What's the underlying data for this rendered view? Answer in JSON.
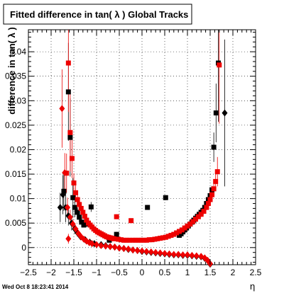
{
  "timestamp": "Wed Oct  8 18:23:41 2014",
  "chart_data": {
    "type": "scatter",
    "title": "Fitted difference in tan( λ )  Global Tracks",
    "xlabel": "η",
    "ylabel": "difference in tan( λ )",
    "xlim": [
      -2.5,
      2.5
    ],
    "ylim": [
      -0.0035,
      0.0445
    ],
    "x_ticks": [
      -2.5,
      -2,
      -1.5,
      -1,
      -0.5,
      0,
      0.5,
      1,
      1.5,
      2,
      2.5
    ],
    "x_tick_labels": [
      "−2.5",
      "−2",
      "−1.5",
      "−1",
      "−0.5",
      "0",
      "0.5",
      "1",
      "1.5",
      "2",
      "2.5"
    ],
    "y_ticks": [
      0,
      0.005,
      0.01,
      0.015,
      0.02,
      0.025,
      0.03,
      0.035,
      0.04
    ],
    "y_tick_labels": [
      "0",
      "0.005",
      "0.01",
      "0.015",
      "0.02",
      "0.025",
      "0.03",
      "0.035",
      "0.04"
    ],
    "grid": true,
    "series": [
      {
        "marker": "square",
        "color": "#000000",
        "points": [
          [
            -1.72,
            0.0115,
            0.004
          ],
          [
            -1.62,
            0.0318,
            0.01
          ],
          [
            -1.58,
            0.0225,
            0.008
          ],
          [
            -1.52,
            0.0102,
            0.004
          ],
          [
            -1.48,
            0.0082,
            0.002
          ],
          [
            -1.42,
            0.0072,
            0.001
          ],
          [
            -1.38,
            0.0062,
            0.001
          ],
          [
            -1.33,
            0.0052,
            0.001
          ],
          [
            -1.28,
            0.0046,
            0.0005
          ],
          [
            -1.2,
            0.0048,
            0.0005
          ],
          [
            -1.12,
            0.0083,
            0.001
          ],
          [
            -0.72,
            0.0015,
            0.0005
          ],
          [
            -0.56,
            0.0027,
            0.0005
          ],
          [
            0.12,
            0.0082,
            0.0005
          ],
          [
            0.52,
            0.0102,
            0.0005
          ],
          [
            0.82,
            0.0025,
            0.0003
          ],
          [
            0.86,
            0.0028,
            0.0003
          ],
          [
            0.9,
            0.0032,
            0.0003
          ],
          [
            0.94,
            0.0036,
            0.0003
          ],
          [
            0.98,
            0.004,
            0.0003
          ],
          [
            1.02,
            0.0044,
            0.0003
          ],
          [
            1.06,
            0.0048,
            0.0003
          ],
          [
            1.1,
            0.0052,
            0.0003
          ],
          [
            1.14,
            0.0056,
            0.0003
          ],
          [
            1.18,
            0.006,
            0.0003
          ],
          [
            1.22,
            0.0064,
            0.0003
          ],
          [
            1.26,
            0.0068,
            0.0003
          ],
          [
            1.3,
            0.0072,
            0.0004
          ],
          [
            1.34,
            0.0076,
            0.0004
          ],
          [
            1.38,
            0.0082,
            0.0004
          ],
          [
            1.42,
            0.009,
            0.0005
          ],
          [
            1.46,
            0.0098,
            0.0006
          ],
          [
            1.5,
            0.0106,
            0.0006
          ],
          [
            1.54,
            0.0118,
            0.0008
          ],
          [
            1.58,
            0.0205,
            0.003
          ],
          [
            1.63,
            0.0275,
            0.006
          ],
          [
            1.68,
            0.0377,
            0.012
          ]
        ]
      },
      {
        "marker": "diamond",
        "color": "#000000",
        "points": [
          [
            -1.8,
            0.0082,
            0.003
          ],
          [
            -1.74,
            0.0108,
            0.004
          ],
          [
            -1.68,
            0.0082,
            0.003
          ],
          [
            -1.62,
            0.0065,
            0.002
          ],
          [
            -1.55,
            0.005,
            0.0015
          ],
          [
            -1.48,
            0.0038,
            0.001
          ],
          [
            -1.42,
            0.003,
            0.0008
          ],
          [
            -1.35,
            0.0022,
            0.0005
          ],
          [
            -1.25,
            0.0016,
            0.0004
          ],
          [
            -1.15,
            0.0011,
            0.0003
          ],
          [
            -1.05,
            0.0008,
            0.0003
          ],
          [
            -0.9,
            0.0006,
            0.0002
          ],
          [
            -0.8,
            0.0004,
            0.0002
          ],
          [
            -0.7,
            0.0002,
            0.0002
          ],
          [
            -0.6,
            0.0001,
            0.0002
          ],
          [
            -0.5,
            -0.0001,
            0.0002
          ],
          [
            -0.4,
            -0.0002,
            0.0002
          ],
          [
            -0.3,
            -0.0004,
            0.0002
          ],
          [
            -0.2,
            -0.0005,
            0.0002
          ],
          [
            -0.1,
            -0.0006,
            0.0002
          ],
          [
            0,
            -0.0008,
            0.0002
          ],
          [
            0.1,
            -0.0009,
            0.0002
          ],
          [
            0.2,
            -0.001,
            0.0002
          ],
          [
            0.3,
            -0.0011,
            0.0002
          ],
          [
            0.4,
            -0.0012,
            0.0002
          ],
          [
            0.5,
            -0.0013,
            0.0002
          ],
          [
            0.6,
            -0.0014,
            0.0002
          ],
          [
            0.7,
            -0.0015,
            0.0002
          ],
          [
            0.8,
            -0.0015,
            0.0002
          ],
          [
            0.9,
            -0.0016,
            0.0002
          ],
          [
            1,
            -0.0016,
            0.0002
          ],
          [
            1.1,
            -0.0017,
            0.0002
          ],
          [
            1.2,
            -0.0018,
            0.0002
          ],
          [
            1.3,
            -0.0019,
            0.0002
          ],
          [
            1.38,
            -0.0022,
            0.0003
          ],
          [
            1.45,
            -0.0027,
            0.0004
          ],
          [
            1.5,
            -0.0034,
            0.0005
          ],
          [
            1.82,
            0.0275,
            0.015
          ]
        ]
      },
      {
        "marker": "square",
        "color": "#ee0000",
        "points": [
          [
            -1.66,
            0.0152,
            0.004
          ],
          [
            -1.62,
            0.0377,
            0.01
          ],
          [
            -1.58,
            0.0235,
            0.008
          ],
          [
            -1.54,
            0.0182,
            0.004
          ],
          [
            -1.5,
            0.0132,
            0.002
          ],
          [
            -1.46,
            0.0112,
            0.0015
          ],
          [
            -1.42,
            0.0098,
            0.001
          ],
          [
            -1.38,
            0.0088,
            0.001
          ],
          [
            -1.34,
            0.008,
            0.0008
          ],
          [
            -1.3,
            0.0072,
            0.0007
          ],
          [
            -1.26,
            0.0064,
            0.0006
          ],
          [
            -1.22,
            0.0056,
            0.0005
          ],
          [
            -1.18,
            0.005,
            0.0005
          ],
          [
            -1.14,
            0.0046,
            0.0004
          ],
          [
            -1.1,
            0.0042,
            0.0004
          ],
          [
            -1.06,
            0.0038,
            0.0004
          ],
          [
            -1.02,
            0.0035,
            0.0003
          ],
          [
            -0.98,
            0.0032,
            0.0003
          ],
          [
            -0.94,
            0.003,
            0.0003
          ],
          [
            -0.9,
            0.0028,
            0.0003
          ],
          [
            -0.86,
            0.0026,
            0.0003
          ],
          [
            -0.82,
            0.0024,
            0.0003
          ],
          [
            -0.78,
            0.0022,
            0.0002
          ],
          [
            -0.74,
            0.0021,
            0.0002
          ],
          [
            -0.7,
            0.002,
            0.0002
          ],
          [
            -0.66,
            0.0019,
            0.0002
          ],
          [
            -0.62,
            0.0018,
            0.0002
          ],
          [
            -0.56,
            0.0063,
            0.0005
          ],
          [
            -0.52,
            0.0017,
            0.0002
          ],
          [
            -0.46,
            0.0016,
            0.0002
          ],
          [
            -0.4,
            0.0015,
            0.0002
          ],
          [
            -0.34,
            0.0015,
            0.0002
          ],
          [
            -0.28,
            0.0015,
            0.0002
          ],
          [
            -0.24,
            0.0055,
            0.0005
          ],
          [
            -0.2,
            0.0015,
            0.0002
          ],
          [
            -0.14,
            0.0015,
            0.0002
          ],
          [
            -0.08,
            0.0015,
            0.0002
          ],
          [
            -0.02,
            0.0015,
            0.0002
          ],
          [
            0.04,
            0.0015,
            0.0002
          ],
          [
            0.1,
            0.0015,
            0.0002
          ],
          [
            0.16,
            0.0016,
            0.0002
          ],
          [
            0.22,
            0.0016,
            0.0002
          ],
          [
            0.28,
            0.0017,
            0.0002
          ],
          [
            0.34,
            0.0018,
            0.0002
          ],
          [
            0.4,
            0.0019,
            0.0002
          ],
          [
            0.46,
            0.002,
            0.0002
          ],
          [
            0.52,
            0.0021,
            0.0002
          ],
          [
            0.58,
            0.0023,
            0.0002
          ],
          [
            0.64,
            0.0025,
            0.0002
          ],
          [
            0.7,
            0.0027,
            0.0002
          ],
          [
            0.76,
            0.003,
            0.0002
          ],
          [
            0.82,
            0.0033,
            0.0003
          ],
          [
            0.88,
            0.0036,
            0.0003
          ],
          [
            0.94,
            0.004,
            0.0003
          ],
          [
            1,
            0.0044,
            0.0003
          ],
          [
            1.06,
            0.0048,
            0.0003
          ],
          [
            1.12,
            0.0053,
            0.0003
          ],
          [
            1.18,
            0.0058,
            0.0003
          ],
          [
            1.24,
            0.0063,
            0.0003
          ],
          [
            1.3,
            0.0068,
            0.0004
          ],
          [
            1.36,
            0.0074,
            0.0004
          ],
          [
            1.42,
            0.0082,
            0.0004
          ],
          [
            1.46,
            0.009,
            0.0005
          ],
          [
            1.5,
            0.0098,
            0.0006
          ],
          [
            1.54,
            0.0108,
            0.0007
          ],
          [
            1.58,
            0.012,
            0.001
          ],
          [
            1.62,
            0.0135,
            0.002
          ],
          [
            1.66,
            0.0155,
            0.003
          ],
          [
            1.7,
            0.0373,
            0.012
          ]
        ]
      },
      {
        "marker": "diamond",
        "color": "#ee0000",
        "points": [
          [
            -1.76,
            0.0284,
            0.008
          ],
          [
            -1.7,
            0.0153,
            0.004
          ],
          [
            -1.64,
            0.0082,
            0.002
          ],
          [
            -1.58,
            0.0062,
            0.0015
          ],
          [
            -1.52,
            0.0048,
            0.001
          ],
          [
            -1.46,
            0.0038,
            0.0008
          ],
          [
            -1.4,
            0.0029,
            0.0006
          ],
          [
            -1.34,
            0.0022,
            0.0005
          ],
          [
            -1.28,
            0.0017,
            0.0004
          ],
          [
            -1.22,
            0.0013,
            0.0003
          ],
          [
            -1.16,
            0.001,
            0.0003
          ],
          [
            -1.1,
            0.0008,
            0.0002
          ],
          [
            -1,
            0.0006,
            0.0002
          ],
          [
            -0.9,
            0.0004,
            0.0002
          ],
          [
            -0.8,
            0.0003,
            0.0002
          ],
          [
            -0.7,
            0.0002,
            0.0002
          ],
          [
            -0.6,
            0.0001,
            0.0002
          ],
          [
            -0.5,
            -0.0001,
            0.0002
          ],
          [
            -0.4,
            -0.0002,
            0.0002
          ],
          [
            -0.3,
            -0.0003,
            0.0002
          ],
          [
            -0.2,
            -0.0005,
            0.0002
          ],
          [
            -0.1,
            -0.0006,
            0.0002
          ],
          [
            0,
            -0.0007,
            0.0002
          ],
          [
            0.1,
            -0.0008,
            0.0002
          ],
          [
            0.2,
            -0.0009,
            0.0002
          ],
          [
            0.3,
            -0.001,
            0.0002
          ],
          [
            0.4,
            -0.0011,
            0.0002
          ],
          [
            0.5,
            -0.0012,
            0.0002
          ],
          [
            0.6,
            -0.0013,
            0.0002
          ],
          [
            0.7,
            -0.0014,
            0.0002
          ],
          [
            0.8,
            -0.0014,
            0.0002
          ],
          [
            0.9,
            -0.0015,
            0.0002
          ],
          [
            1,
            -0.0015,
            0.0002
          ],
          [
            1.1,
            -0.0016,
            0.0002
          ],
          [
            1.2,
            -0.0017,
            0.0002
          ],
          [
            1.3,
            -0.0018,
            0.0002
          ],
          [
            1.38,
            -0.0021,
            0.0003
          ],
          [
            1.44,
            -0.0026,
            0.0004
          ],
          [
            1.5,
            -0.0033,
            0.0005
          ],
          [
            -1.62,
            0.0018,
            0.001
          ]
        ]
      }
    ]
  }
}
